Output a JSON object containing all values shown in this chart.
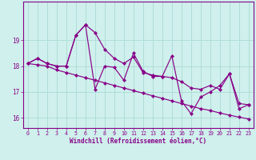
{
  "xlabel": "Windchill (Refroidissement éolien,°C)",
  "bg_color": "#cff0ec",
  "grid_color": "#b0ddd8",
  "line_color": "#880088",
  "ylim": [
    15.6,
    20.5
  ],
  "xlim": [
    -0.5,
    23.5
  ],
  "yticks": [
    16,
    17,
    18,
    19
  ],
  "xticks": [
    0,
    1,
    2,
    3,
    4,
    5,
    6,
    7,
    8,
    9,
    10,
    11,
    12,
    13,
    14,
    15,
    16,
    17,
    18,
    19,
    20,
    21,
    22,
    23
  ],
  "series1": [
    18.1,
    18.3,
    18.1,
    18.0,
    18.0,
    19.2,
    19.6,
    19.3,
    18.65,
    18.3,
    18.1,
    18.35,
    17.75,
    17.65,
    17.6,
    17.55,
    17.4,
    17.15,
    17.1,
    17.25,
    17.1,
    17.7,
    16.55,
    16.5
  ],
  "series2": [
    18.1,
    18.3,
    18.1,
    18.0,
    18.0,
    19.2,
    19.6,
    17.1,
    18.0,
    17.95,
    17.45,
    18.5,
    17.8,
    17.6,
    17.6,
    18.4,
    16.65,
    16.15,
    16.8,
    17.0,
    17.25,
    17.7,
    16.35,
    16.5
  ],
  "series3": [
    18.1,
    18.05,
    18.0,
    17.85,
    17.75,
    17.65,
    17.55,
    17.45,
    17.35,
    17.25,
    17.15,
    17.05,
    16.95,
    16.85,
    16.75,
    16.65,
    16.55,
    16.45,
    16.35,
    16.28,
    16.18,
    16.1,
    16.02,
    15.95
  ]
}
